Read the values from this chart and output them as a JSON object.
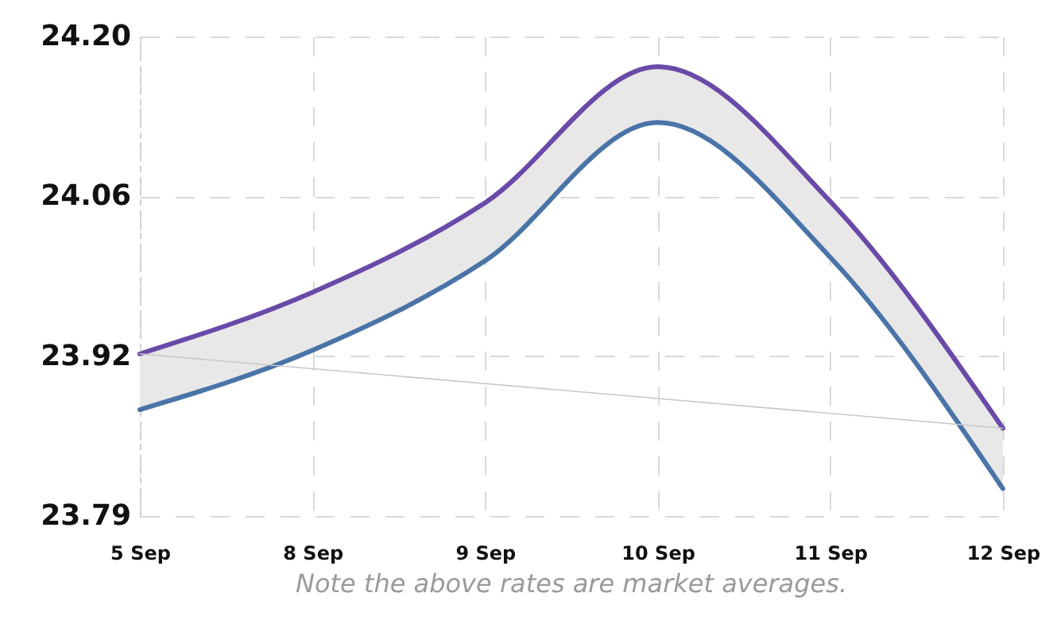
{
  "chart_data": {
    "type": "line",
    "categories": [
      "5 Sep",
      "8 Sep",
      "9 Sep",
      "10 Sep",
      "11 Sep",
      "12 Sep"
    ],
    "series": [
      {
        "color": "#6a4aa8",
        "values": [
          23.927,
          23.98,
          24.057,
          24.174,
          24.058,
          23.863
        ]
      },
      {
        "color": "#4a74a8",
        "values": [
          23.879,
          23.93,
          24.007,
          24.126,
          24.01,
          23.811
        ],
        "lower": [
          23.879,
          23.93,
          24.007,
          24.126,
          24.01,
          23.811
        ],
        "upper": [
          23.927,
          23.98,
          24.057,
          24.174,
          24.058,
          23.863
        ]
      },
      {
        "color": "#c8c8c8",
        "values": [
          23.927,
          null,
          null,
          null,
          null,
          23.863
        ]
      }
    ],
    "ylim": [
      23.7875,
      24.2
    ],
    "yticks": [
      {
        "value": 23.7875,
        "label": "23.79"
      },
      {
        "value": 23.925,
        "label": "23.92"
      },
      {
        "value": 24.0625,
        "label": "24.06"
      },
      {
        "value": 24.2,
        "label": "24.20"
      }
    ],
    "grid": true,
    "marker": "none",
    "line_style": "solid",
    "annotations": [
      "Note the above rates are market averages."
    ]
  }
}
